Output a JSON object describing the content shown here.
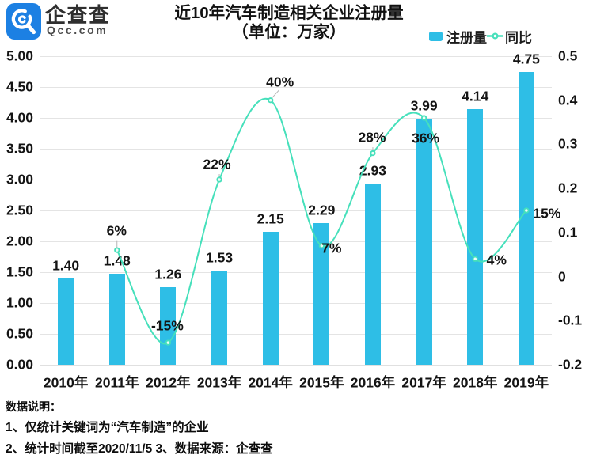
{
  "page": {
    "background": "#ffffff"
  },
  "header": {
    "logo": {
      "brand_cn": "企查查",
      "brand_domain": "Qcc.com",
      "badge_color": "#1c80e3"
    },
    "title": "近10年汽车制造相关企业注册量",
    "subtitle": "（单位：万家）"
  },
  "legend": {
    "items": [
      {
        "label": "注册量",
        "type": "bar",
        "color": "#2ebee6"
      },
      {
        "label": "同比",
        "type": "line",
        "color": "#46e0bb"
      }
    ]
  },
  "chart_data": {
    "type": "bar",
    "combo": "bar+line",
    "title": "近10年汽车制造相关企业注册量",
    "subtitle": "（单位：万家）",
    "categories": [
      "2010年",
      "2011年",
      "2012年",
      "2013年",
      "2014年",
      "2015年",
      "2016年",
      "2017年",
      "2018年",
      "2019年"
    ],
    "series": [
      {
        "name": "注册量",
        "type": "bar",
        "axis": "left",
        "unit": "万家",
        "values": [
          1.4,
          1.48,
          1.26,
          1.53,
          2.15,
          2.29,
          2.93,
          3.99,
          4.14,
          4.75
        ],
        "labels": [
          "1.40",
          "1.48",
          "1.26",
          "1.53",
          "2.15",
          "2.29",
          "2.93",
          "3.99",
          "4.14",
          "4.75"
        ],
        "color": "#2ebee6"
      },
      {
        "name": "同比",
        "type": "line",
        "axis": "right",
        "values": [
          null,
          0.06,
          -0.15,
          0.22,
          0.4,
          0.07,
          0.28,
          0.36,
          0.04,
          0.15
        ],
        "labels": [
          null,
          "6%",
          "-15%",
          "22%",
          "40%",
          "7%",
          "28%",
          "36%",
          "4%",
          "15%"
        ],
        "color": "#46e0bb",
        "smooth": true,
        "marker": "hollow-circle"
      }
    ],
    "left_axis": {
      "min": 0,
      "max": 5,
      "step": 0.5,
      "tick_labels": [
        "5.00",
        "4.50",
        "4.00",
        "3.50",
        "3.00",
        "2.50",
        "2.00",
        "1.50",
        "1.00",
        "0.50",
        "0.00"
      ]
    },
    "right_axis": {
      "min": -0.2,
      "max": 0.5,
      "step": 0.1,
      "tick_labels": [
        "0.5",
        "0.4",
        "0.3",
        "0.2",
        "0.1",
        "0",
        "-0.1",
        "-0.2"
      ]
    },
    "grid": true,
    "legend_position": "top-right"
  },
  "footer": {
    "heading": "数据说明：",
    "notes": [
      "1、仅统计关键词为“汽车制造”的企业",
      "2、统计时间截至2020/11/5 3、数据来源：企查查"
    ]
  },
  "colors": {
    "bar": "#2ebee6",
    "line": "#46e0bb",
    "marker_fill": "#f0fdf8",
    "grid": "#e4e4e4",
    "axis_line": "#e0e0e0",
    "text": "#141414",
    "leader": "#b5b5b5",
    "logo_blue": "#1c80e3"
  }
}
